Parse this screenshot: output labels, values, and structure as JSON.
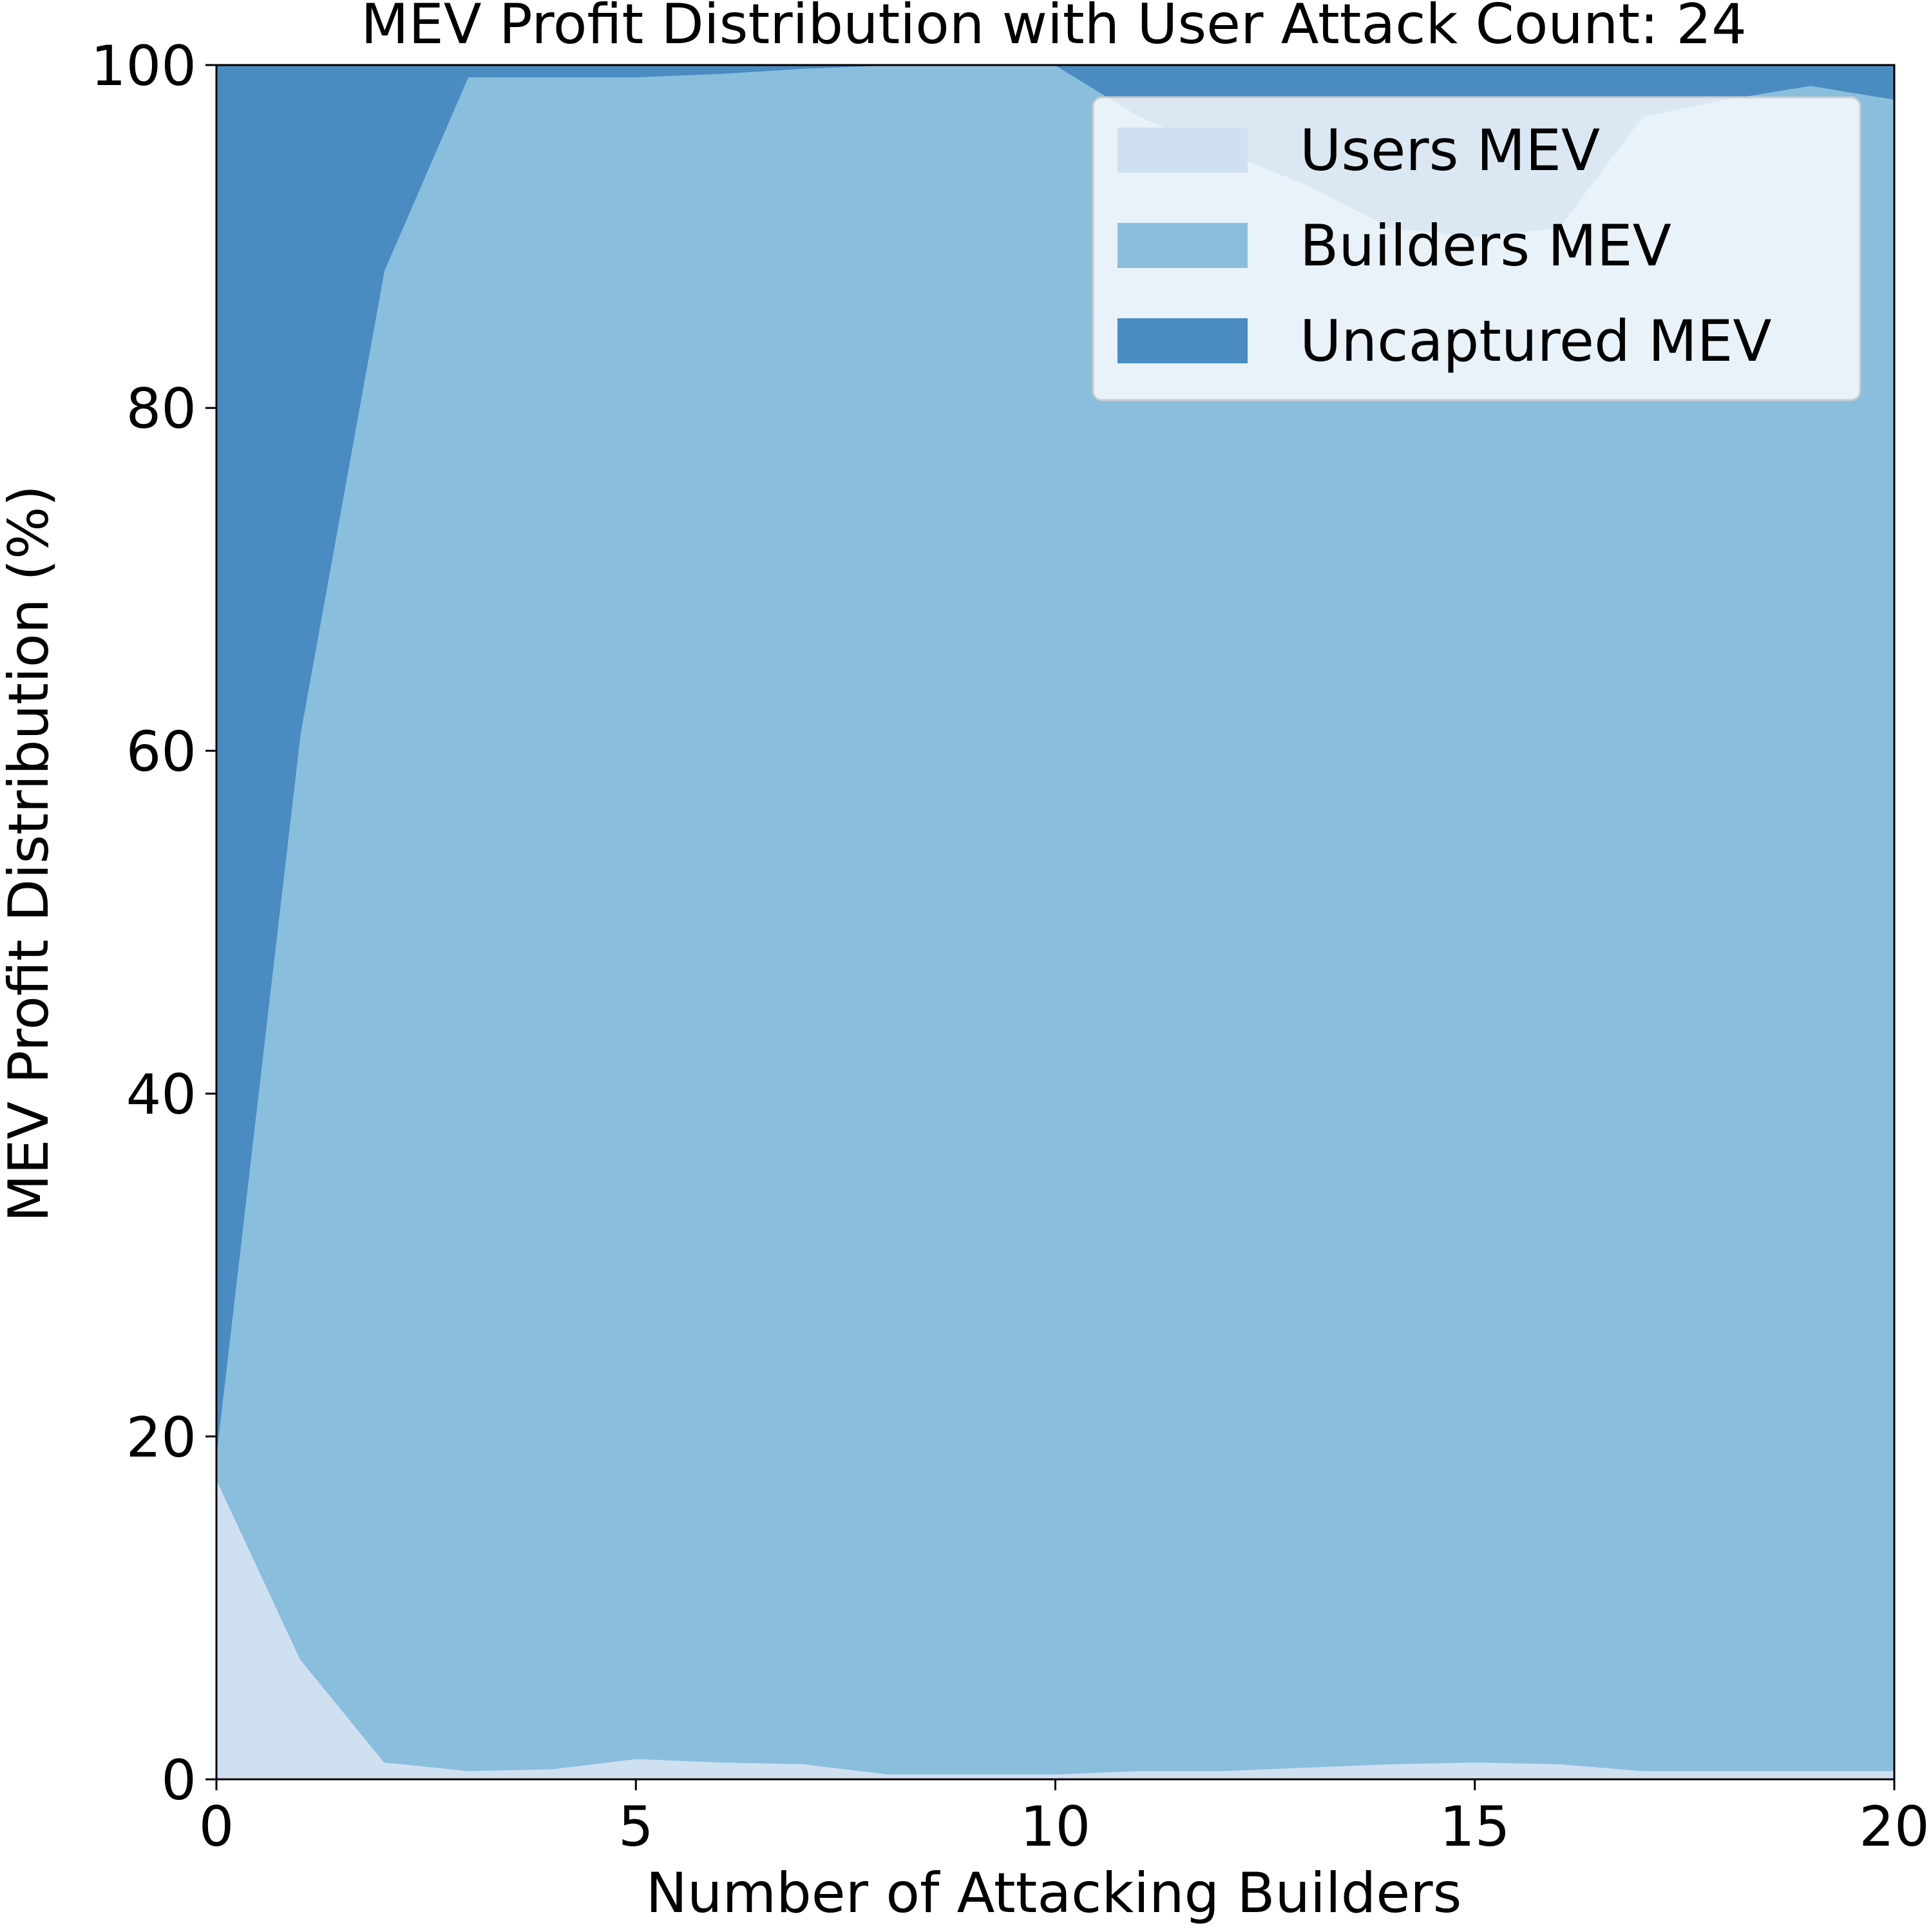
{
  "chart_data": {
    "type": "area",
    "stacked": true,
    "title": "MEV Profit Distribution with User Attack Count: 24",
    "xlabel": "Number of Attacking Builders",
    "ylabel": "MEV Profit Distribution (%)",
    "xlim": [
      0,
      20
    ],
    "ylim": [
      0,
      100
    ],
    "xticks": [
      "0",
      "5",
      "10",
      "15",
      "20"
    ],
    "yticks": [
      "0",
      "20",
      "40",
      "60",
      "80",
      "100"
    ],
    "grid": false,
    "legend_position": "top-right",
    "x": [
      0,
      1,
      2,
      3,
      4,
      5,
      6,
      7,
      8,
      9,
      10,
      11,
      12,
      13,
      14,
      15,
      16,
      17,
      18,
      19,
      20
    ],
    "series": [
      {
        "name": "Users MEV",
        "color": "#cfe0f1",
        "values": [
          17.5,
          7.0,
          1.0,
          0.5,
          0.6,
          1.2,
          1.0,
          0.9,
          0.3,
          0.3,
          0.3,
          0.5,
          0.5,
          0.7,
          0.9,
          1.0,
          0.9,
          0.5,
          0.5,
          0.5,
          0.5
        ]
      },
      {
        "name": "Builders MEV",
        "color": "#8abedd",
        "values": [
          1.5,
          54.0,
          87.0,
          98.8,
          98.7,
          98.1,
          98.5,
          98.9,
          99.7,
          99.7,
          99.7,
          96.5,
          94.5,
          92.3,
          89.6,
          89.0,
          89.6,
          96.5,
          97.5,
          98.3,
          97.5
        ]
      },
      {
        "name": "Uncaptured MEV",
        "color": "#4a8bc2",
        "values": [
          81.0,
          39.0,
          12.0,
          0.7,
          0.7,
          0.7,
          0.5,
          0.2,
          0.0,
          0.0,
          0.0,
          3.0,
          5.0,
          7.0,
          9.5,
          10.0,
          9.5,
          3.0,
          2.0,
          1.2,
          2.0
        ]
      }
    ]
  }
}
